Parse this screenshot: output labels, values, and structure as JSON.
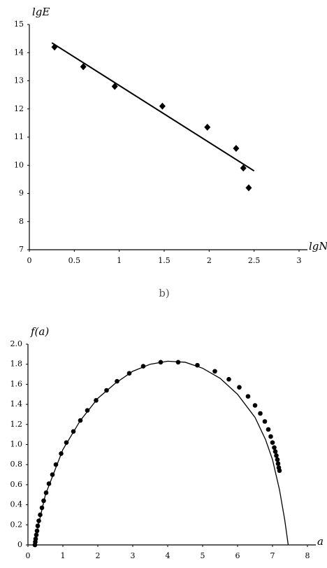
{
  "chart_data": [
    {
      "type": "scatter",
      "ylabel": "lgE",
      "xlabel": "lgN",
      "caption": "b)",
      "xlim": [
        0,
        3
      ],
      "xticks": [
        0,
        0.5,
        1,
        1.5,
        2,
        2.5,
        3
      ],
      "ylim": [
        7,
        15
      ],
      "yticks": [
        7,
        8,
        9,
        10,
        11,
        12,
        13,
        14,
        15
      ],
      "color": "#000000",
      "marker": "diamond",
      "points": {
        "x": [
          0.28,
          0.6,
          0.95,
          1.48,
          1.98,
          2.3,
          2.38,
          2.44
        ],
        "values": [
          14.2,
          13.5,
          12.8,
          12.1,
          11.35,
          10.6,
          9.9,
          9.2
        ]
      },
      "fit": {
        "x": [
          0.25,
          2.5
        ],
        "values": [
          14.35,
          9.8
        ]
      }
    },
    {
      "type": "scatter",
      "ylabel": "f(a)",
      "xlabel": "a",
      "xlim": [
        0,
        8
      ],
      "xticks": [
        0,
        1,
        2,
        3,
        4,
        5,
        6,
        7,
        8
      ],
      "ylim": [
        0,
        2
      ],
      "yticks": [
        0,
        0.2,
        0.4,
        0.6,
        0.8,
        {
          "value": 1,
          "label": "1.0"
        },
        1.2,
        1.4,
        1.6,
        1.8,
        {
          "value": 2,
          "label": "2.0"
        }
      ],
      "color": "#000000",
      "marker": "circle",
      "points": {
        "x": [
          0.2,
          0.21,
          0.22,
          0.24,
          0.26,
          0.28,
          0.31,
          0.35,
          0.4,
          0.45,
          0.52,
          0.6,
          0.7,
          0.8,
          0.95,
          1.1,
          1.3,
          1.5,
          1.7,
          1.95,
          2.25,
          2.55,
          2.9,
          3.3,
          3.8,
          4.3,
          4.85,
          5.35,
          5.75,
          6.05,
          6.3,
          6.5,
          6.65,
          6.78,
          6.88,
          6.95,
          7.0,
          7.05,
          7.08,
          7.11,
          7.14,
          7.16,
          7.18,
          7.2
        ],
        "values": [
          0.0,
          0.03,
          0.06,
          0.1,
          0.14,
          0.19,
          0.24,
          0.3,
          0.37,
          0.44,
          0.52,
          0.61,
          0.7,
          0.8,
          0.91,
          1.02,
          1.13,
          1.24,
          1.34,
          1.44,
          1.54,
          1.63,
          1.71,
          1.78,
          1.82,
          1.82,
          1.79,
          1.73,
          1.65,
          1.57,
          1.48,
          1.39,
          1.31,
          1.23,
          1.15,
          1.08,
          1.02,
          0.97,
          0.93,
          0.89,
          0.85,
          0.81,
          0.77,
          0.74
        ]
      },
      "fit": {
        "x": [
          0.2,
          0.3,
          0.5,
          1,
          1.5,
          2,
          2.5,
          3,
          3.5,
          4,
          4.5,
          5,
          5.5,
          6,
          6.5,
          6.8,
          7,
          7.2,
          7.35,
          7.45
        ],
        "values": [
          0,
          0.2,
          0.5,
          0.95,
          1.24,
          1.46,
          1.61,
          1.73,
          1.8,
          1.83,
          1.82,
          1.76,
          1.66,
          1.5,
          1.27,
          1.05,
          0.85,
          0.55,
          0.25,
          0
        ]
      }
    }
  ]
}
